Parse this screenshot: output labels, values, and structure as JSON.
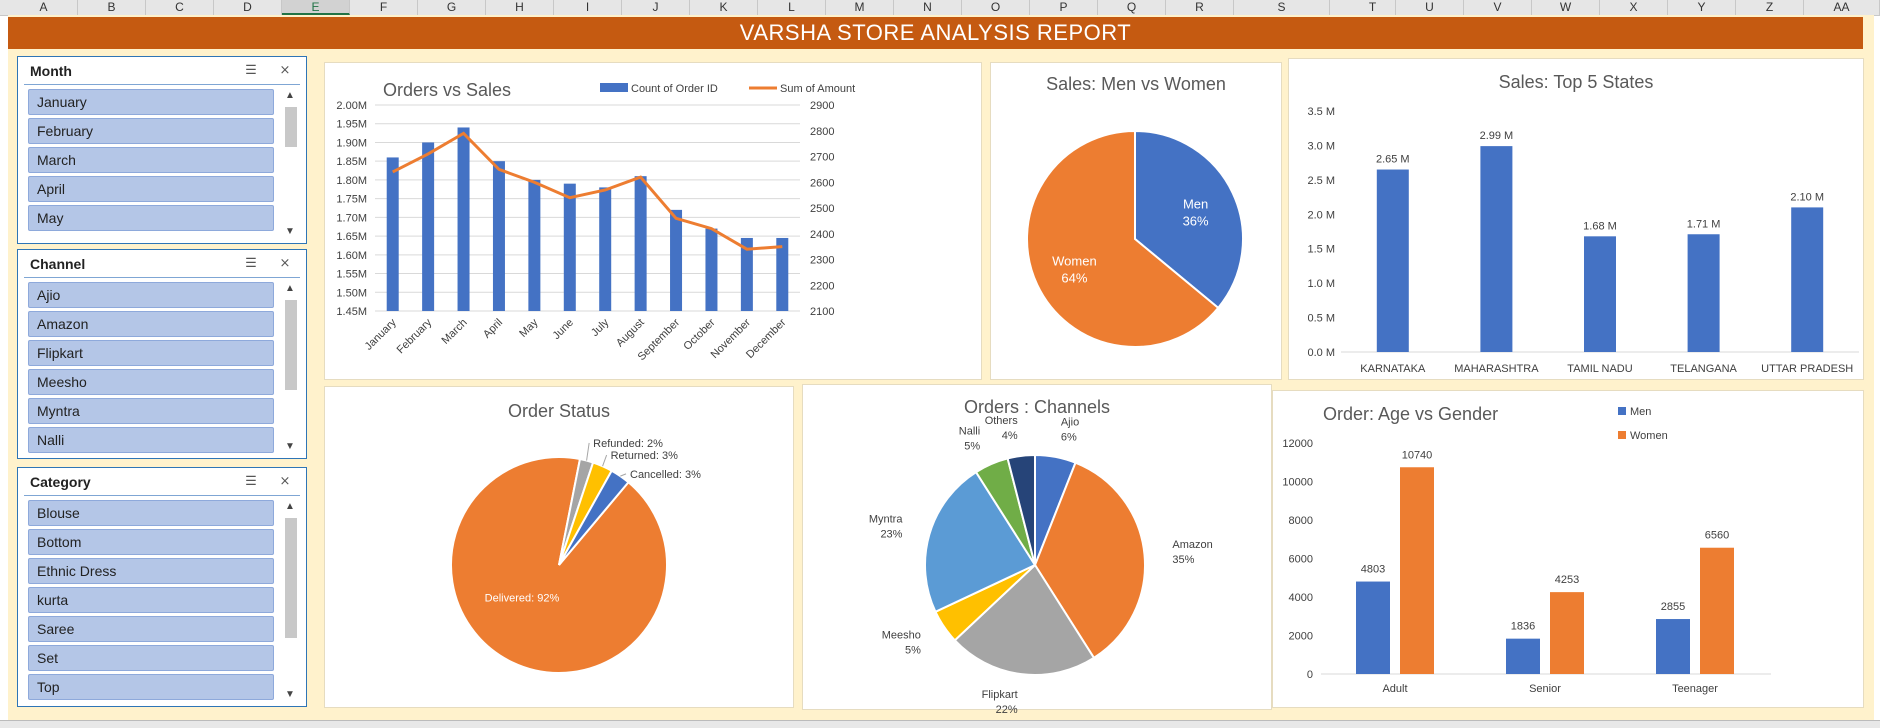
{
  "sheet": {
    "columns": [
      "A",
      "B",
      "C",
      "D",
      "E",
      "F",
      "G",
      "H",
      "I",
      "J",
      "K",
      "L",
      "M",
      "N",
      "O",
      "P",
      "Q",
      "R",
      "S",
      "T",
      "U",
      "V",
      "W",
      "X",
      "Y",
      "Z",
      "AA"
    ],
    "selected_column": "E"
  },
  "report_title": "VARSHA STORE ANALYSIS REPORT",
  "slicers": {
    "month": {
      "title": "Month",
      "items": [
        "January",
        "February",
        "March",
        "April",
        "May"
      ]
    },
    "channel": {
      "title": "Channel",
      "items": [
        "Ajio",
        "Amazon",
        "Flipkart",
        "Meesho",
        "Myntra",
        "Nalli"
      ]
    },
    "category": {
      "title": "Category",
      "items": [
        "Blouse",
        "Bottom",
        "Ethnic Dress",
        "kurta",
        "Saree",
        "Set",
        "Top"
      ]
    },
    "icons": {
      "multi_select": "multi-select-icon",
      "clear_filter": "clear-filter-icon",
      "scroll_up": "▲",
      "scroll_down": "▼"
    }
  },
  "chart_data": [
    {
      "id": "orders_vs_sales",
      "type": "bar",
      "title": "Orders vs Sales",
      "categories": [
        "January",
        "February",
        "March",
        "April",
        "May",
        "June",
        "July",
        "August",
        "September",
        "October",
        "November",
        "December"
      ],
      "series": [
        {
          "name": "Count of Order ID",
          "kind": "bar",
          "axis": "left",
          "color": "#4472c4",
          "values": [
            1.86,
            1.9,
            1.94,
            1.85,
            1.8,
            1.79,
            1.78,
            1.81,
            1.72,
            1.67,
            1.645,
            1.645
          ]
        },
        {
          "name": "Sum of Amount",
          "kind": "line",
          "axis": "right",
          "color": "#ed7d31",
          "values": [
            2640,
            2710,
            2790,
            2650,
            2600,
            2540,
            2570,
            2620,
            2460,
            2420,
            2340,
            2350
          ]
        }
      ],
      "ylim": [
        1.45,
        2.0
      ],
      "yticks": [
        "2.00M",
        "1.95M",
        "1.90M",
        "1.85M",
        "1.80M",
        "1.75M",
        "1.70M",
        "1.65M",
        "1.60M",
        "1.55M",
        "1.50M",
        "1.45M"
      ],
      "y2lim": [
        2100,
        2900
      ],
      "y2ticks": [
        "2900",
        "2800",
        "2700",
        "2600",
        "2500",
        "2400",
        "2300",
        "2200",
        "2100"
      ]
    },
    {
      "id": "sales_men_women",
      "type": "pie",
      "title": "Sales: Men vs Women",
      "slices": [
        {
          "label": "Men",
          "value": 36,
          "pct": "36%",
          "color": "#4472c4"
        },
        {
          "label": "Women",
          "value": 64,
          "pct": "64%",
          "color": "#ed7d31"
        }
      ]
    },
    {
      "id": "top5_states",
      "type": "bar",
      "title": "Sales: Top 5 States",
      "categories": [
        "KARNATAKA",
        "MAHARASHTRA",
        "TAMIL NADU",
        "TELANGANA",
        "UTTAR PRADESH"
      ],
      "values": [
        2.65,
        2.99,
        1.68,
        1.71,
        2.1
      ],
      "data_labels": [
        "2.65 M",
        "2.99 M",
        "1.68 M",
        "1.71 M",
        "2.10 M"
      ],
      "ylim": [
        0,
        3.5
      ],
      "yticks": [
        "3.5 M",
        "3.0 M",
        "2.5 M",
        "2.0 M",
        "1.5 M",
        "1.0 M",
        "0.5 M",
        "0.0 M"
      ],
      "color": "#4472c4"
    },
    {
      "id": "order_status",
      "type": "pie",
      "title": "Order Status",
      "slices": [
        {
          "label": "Delivered: 92%",
          "value": 92,
          "color": "#ed7d31"
        },
        {
          "label": "Refunded: 2%",
          "value": 2,
          "color": "#a5a5a5"
        },
        {
          "label": "Returned: 3%",
          "value": 3,
          "color": "#ffc000"
        },
        {
          "label": "Cancelled: 3%",
          "value": 3,
          "color": "#4472c4"
        }
      ]
    },
    {
      "id": "orders_channels",
      "type": "pie",
      "title": "Orders : Channels",
      "slices": [
        {
          "label": "Ajio",
          "pct": "6%",
          "value": 6,
          "color": "#4472c4"
        },
        {
          "label": "Amazon",
          "pct": "35%",
          "value": 35,
          "color": "#ed7d31"
        },
        {
          "label": "Flipkart",
          "pct": "22%",
          "value": 22,
          "color": "#a5a5a5"
        },
        {
          "label": "Meesho",
          "pct": "5%",
          "value": 5,
          "color": "#ffc000"
        },
        {
          "label": "Myntra",
          "pct": "23%",
          "value": 23,
          "color": "#5b9bd5"
        },
        {
          "label": "Nalli",
          "pct": "5%",
          "value": 5,
          "color": "#70ad47"
        },
        {
          "label": "Others",
          "pct": "4%",
          "value": 4,
          "color": "#264478"
        }
      ]
    },
    {
      "id": "age_vs_gender",
      "type": "bar",
      "title": "Order: Age vs Gender",
      "categories": [
        "Adult",
        "Senior",
        "Teenager"
      ],
      "series": [
        {
          "name": "Men",
          "color": "#4472c4",
          "values": [
            4803,
            1836,
            2855
          ]
        },
        {
          "name": "Women",
          "color": "#ed7d31",
          "values": [
            10740,
            4253,
            6560
          ]
        }
      ],
      "ylim": [
        0,
        12000
      ],
      "yticks": [
        "12000",
        "10000",
        "8000",
        "6000",
        "4000",
        "2000",
        "0"
      ]
    }
  ]
}
